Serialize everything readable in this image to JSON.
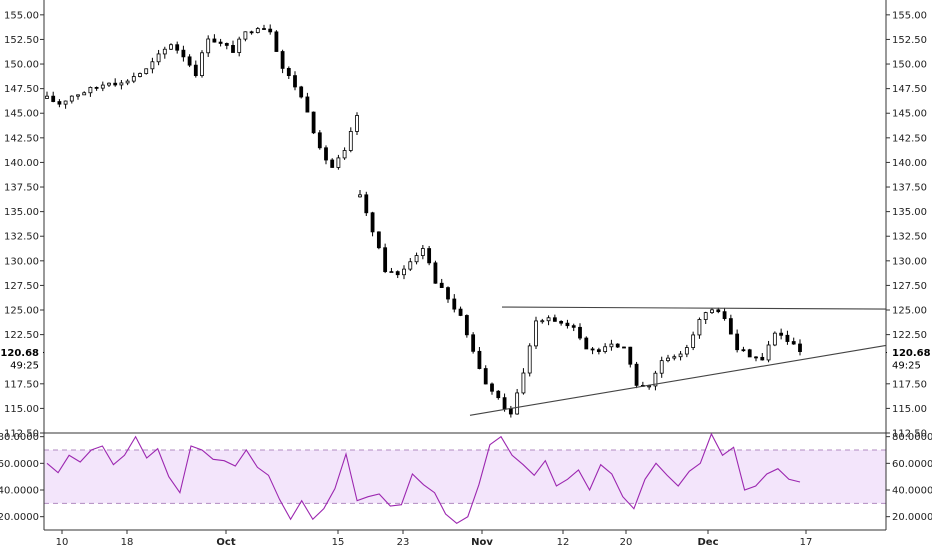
{
  "colors": {
    "candle": "#000000",
    "axis": "#333333",
    "trendline": "#444444",
    "rsi_line": "#9c27b0",
    "rsi_band_fill": "#f3e5fb",
    "rsi_band_border": "#b08ac0",
    "price_label_bg": "#ffffff"
  },
  "chart_data": [
    {
      "type": "candlestick",
      "title": "",
      "ylim": [
        112.5,
        156.0
      ],
      "yticks": [
        "155.00",
        "152.50",
        "150.00",
        "147.50",
        "145.00",
        "142.50",
        "140.00",
        "137.50",
        "135.00",
        "132.50",
        "130.00",
        "127.50",
        "125.00",
        "122.50",
        "117.50",
        "115.00",
        "112.50"
      ],
      "last_price": "120.68",
      "countdown": "49:25",
      "x_labels": [
        "10",
        "18",
        "Oct",
        "15",
        "23",
        "Nov",
        "12",
        "20",
        "Dec",
        "17"
      ],
      "series": [
        {
          "values": [
            146.5,
            146.0,
            146.8,
            147.2,
            147.6,
            148.3,
            148.0,
            148.8,
            149.4,
            150.8,
            152.1,
            150.9,
            149.1,
            152.8,
            152.0,
            151.4,
            153.1,
            153.9,
            153.5,
            149.6,
            147.8,
            145.4,
            141.2,
            139.5,
            141.0,
            144.8
          ]
        },
        {
          "values": [
            136.5,
            133.2,
            129.1,
            128.6,
            130.0,
            131.5,
            128.0,
            126.1,
            124.2,
            120.8,
            117.4,
            116.0,
            114.2,
            118.5,
            124.0,
            124.4,
            123.6,
            123.0,
            121.1,
            120.8,
            121.6,
            121.2,
            117.5,
            117.1,
            119.8,
            120.0,
            121.4,
            124.0,
            125.0,
            124.2,
            121.0,
            120.5,
            119.9,
            122.8,
            121.8,
            120.7
          ]
        }
      ],
      "trendlines": [
        {
          "from": [
            "Nov 1",
            125.3
          ],
          "to": [
            "Dec 24",
            125.1
          ]
        },
        {
          "from": [
            "Oct 30",
            114.3
          ],
          "to": [
            "Dec 24",
            121.4
          ]
        }
      ]
    },
    {
      "type": "line",
      "title": "",
      "ylim": [
        10.0,
        82.0
      ],
      "yticks": [
        "80.0000",
        "60.0000",
        "40.0000",
        "20.0000"
      ],
      "band": [
        30,
        70
      ],
      "values": [
        60,
        53,
        66,
        61,
        70,
        73,
        59,
        66,
        80,
        64,
        71,
        50,
        38,
        73,
        70,
        63,
        62,
        58,
        70,
        57,
        51,
        33,
        18,
        32,
        18,
        26,
        41,
        67,
        32,
        35,
        37,
        28,
        29,
        52,
        44,
        38,
        22,
        15,
        20,
        44,
        74,
        80,
        66,
        59,
        51,
        62,
        43,
        48,
        55,
        40,
        59,
        52,
        35,
        26,
        48,
        60,
        51,
        43,
        54,
        60,
        82,
        66,
        72,
        40,
        43,
        52,
        56,
        48,
        46
      ],
      "values_b": null
    }
  ]
}
